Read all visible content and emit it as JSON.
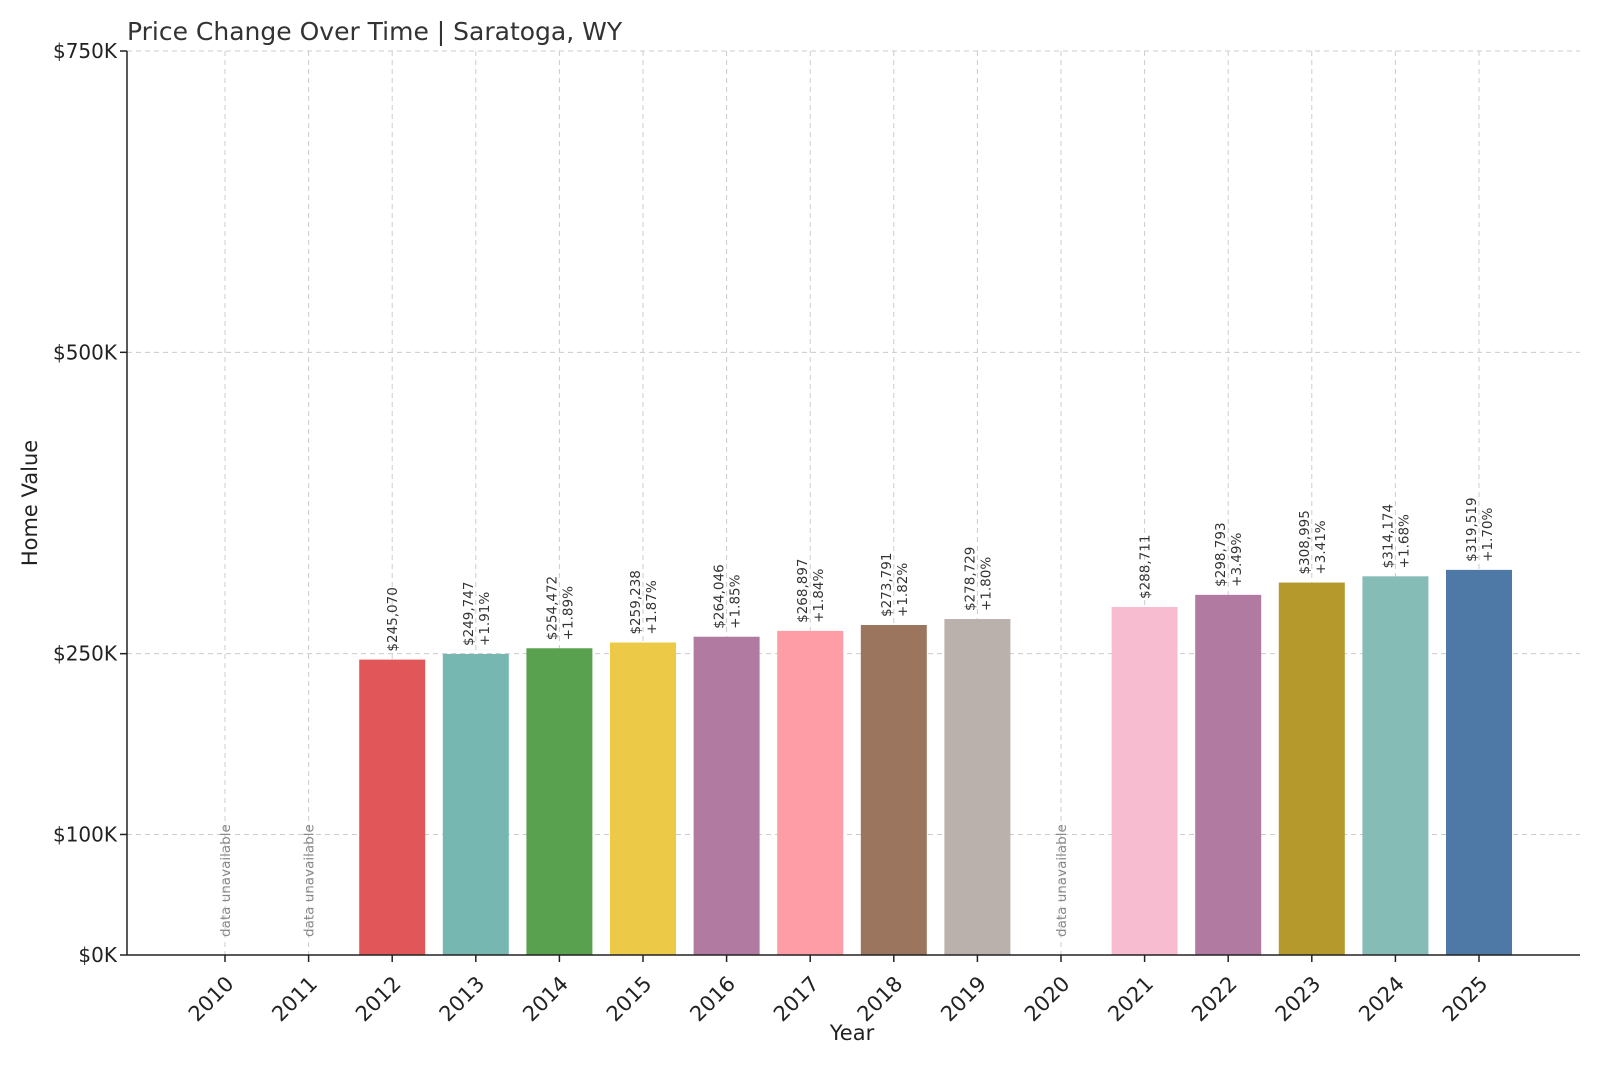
{
  "chart_data": {
    "type": "bar",
    "title": "Price Change Over Time | Saratoga, WY",
    "xlabel": "Year",
    "ylabel": "Home Value",
    "ylim": [
      0,
      750000
    ],
    "yticks": [
      0,
      100000,
      250000,
      500000,
      750000
    ],
    "ytick_labels": [
      "$0K",
      "$100K",
      "$250K",
      "$500K",
      "$750K"
    ],
    "grid": true,
    "unavailable_label": "data unavailable",
    "categories": [
      "2010",
      "2011",
      "2012",
      "2013",
      "2014",
      "2015",
      "2016",
      "2017",
      "2018",
      "2019",
      "2020",
      "2021",
      "2022",
      "2023",
      "2024",
      "2025"
    ],
    "values": [
      null,
      null,
      245070,
      249747,
      254472,
      259238,
      264046,
      268897,
      273791,
      278729,
      null,
      288711,
      298793,
      308995,
      314174,
      319519
    ],
    "value_labels": [
      "",
      "",
      "$245,070",
      "$249,747",
      "$254,472",
      "$259,238",
      "$264,046",
      "$268,897",
      "$273,791",
      "$278,729",
      "",
      "$288,711",
      "$298,793",
      "$308,995",
      "$314,174",
      "$319,519"
    ],
    "change_labels": [
      "",
      "",
      "",
      "+1.91%",
      "+1.89%",
      "+1.87%",
      "+1.85%",
      "+1.84%",
      "+1.82%",
      "+1.80%",
      "",
      "",
      "+3.49%",
      "+3.41%",
      "+1.68%",
      "+1.70%"
    ],
    "colors": [
      "#e15759",
      "#e15759",
      "#e15759",
      "#76b7b2",
      "#59a14f",
      "#edc948",
      "#b07aa1",
      "#ff9da7",
      "#9c755f",
      "#bab0ac",
      "#bab0ac",
      "#f8bcd0",
      "#b07aa1",
      "#b5992c",
      "#86bcb6",
      "#4e79a7"
    ]
  }
}
